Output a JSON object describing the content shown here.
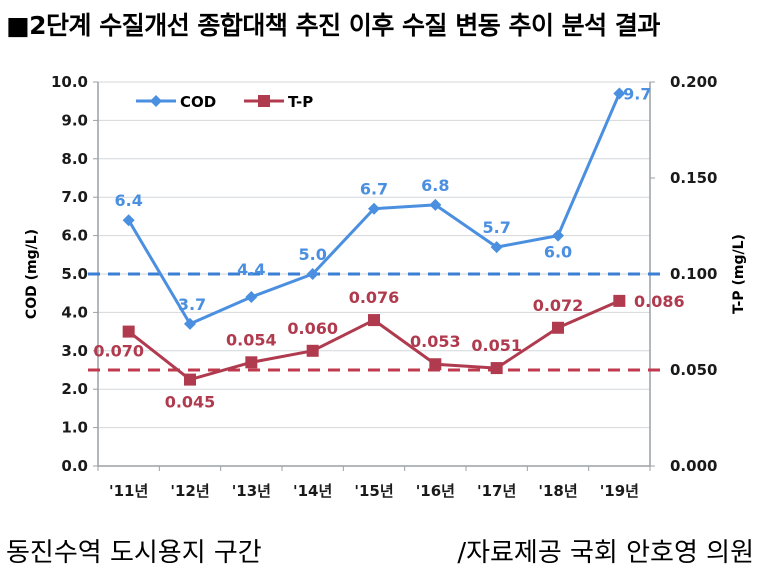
{
  "page": {
    "title": "■2단계 수질개선 종합대책 추진 이후 수질 변동 추이 분석 결과",
    "footer_left": "동진수역 도시용지 구간",
    "footer_right": "/자료제공 국회 안호영 의원"
  },
  "chart_data": {
    "type": "line",
    "categories": [
      "'11년",
      "'12년",
      "'13년",
      "'14년",
      "'15년",
      "'16년",
      "'17년",
      "'18년",
      "'19년"
    ],
    "series": [
      {
        "name": "COD",
        "axis": "left",
        "color": "#4a8fe0",
        "marker": "diamond",
        "values": [
          6.4,
          3.7,
          4.4,
          5.0,
          6.7,
          6.8,
          5.7,
          6.0,
          9.7
        ],
        "labels": [
          "6.4",
          "3.7",
          "4.4",
          "5.0",
          "6.7",
          "6.8",
          "5.7",
          "6.0",
          "9.7"
        ]
      },
      {
        "name": "T-P",
        "axis": "right",
        "color": "#b03a4e",
        "marker": "square",
        "values": [
          0.07,
          0.045,
          0.054,
          0.06,
          0.076,
          0.053,
          0.051,
          0.072,
          0.086
        ],
        "labels": [
          "0.070",
          "0.045",
          "0.054",
          "0.060",
          "0.076",
          "0.053",
          "0.051",
          "0.072",
          "0.086"
        ]
      }
    ],
    "ylabel_left": "COD (mg/L)",
    "ylabel_right": "T-P (mg/L)",
    "ylim_left": [
      0,
      10
    ],
    "ylim_right": [
      0,
      0.2
    ],
    "yticks_left": [
      "0.0",
      "1.0",
      "2.0",
      "3.0",
      "4.0",
      "5.0",
      "6.0",
      "7.0",
      "8.0",
      "9.0",
      "10.0"
    ],
    "yticks_right": [
      "0.000",
      "0.050",
      "0.100",
      "0.150",
      "0.200"
    ],
    "reference_lines": [
      {
        "axis": "left",
        "value": 5.0,
        "color": "#3a7fd5",
        "style": "dashed"
      },
      {
        "axis": "right",
        "value": 0.05,
        "color": "#c0394d",
        "style": "dashed"
      }
    ],
    "grid": true,
    "legend_position": "top-left"
  }
}
